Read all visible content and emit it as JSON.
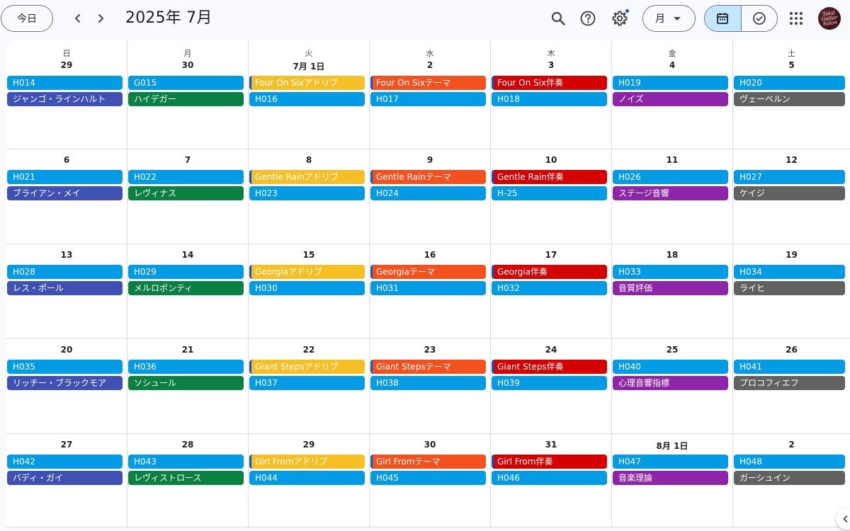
{
  "header": {
    "today_label": "今日",
    "title": "2025年 7月",
    "view_label": "月",
    "avatar_text": "Total Guitar Salon"
  },
  "weekdays": [
    "日",
    "月",
    "火",
    "水",
    "木",
    "金",
    "土"
  ],
  "colors": {
    "blue": "#039be5",
    "indigo": "#3f51b5",
    "green": "#0b8043",
    "yellow": "#f6bf26",
    "orange": "#f4511e",
    "red": "#d50000",
    "purple": "#8e24aa",
    "gray": "#616161",
    "accent": "#c2e7ff"
  },
  "weeks": [
    {
      "days": [
        {
          "label": "29",
          "events": [
            {
              "title": "H014",
              "color": "blue"
            },
            {
              "title": "ジャンゴ・ラインハルト",
              "color": "indigo"
            }
          ]
        },
        {
          "label": "30",
          "events": [
            {
              "title": "G015",
              "color": "blue"
            },
            {
              "title": "ハイデガー",
              "color": "green"
            }
          ]
        },
        {
          "label": "7月 1日",
          "events": [
            {
              "title": "Four On Sixアドリブ",
              "color": "yellow",
              "tag": true
            },
            {
              "title": "H016",
              "color": "blue"
            }
          ]
        },
        {
          "label": "2",
          "events": [
            {
              "title": "Four On Sixテーマ",
              "color": "orange",
              "tag": true
            },
            {
              "title": "H017",
              "color": "blue"
            }
          ]
        },
        {
          "label": "3",
          "events": [
            {
              "title": "Four On Six伴奏",
              "color": "red",
              "tag": true
            },
            {
              "title": "H018",
              "color": "blue"
            }
          ]
        },
        {
          "label": "4",
          "events": [
            {
              "title": "H019",
              "color": "blue"
            },
            {
              "title": "ノイズ",
              "color": "purple"
            }
          ]
        },
        {
          "label": "5",
          "events": [
            {
              "title": "H020",
              "color": "blue"
            },
            {
              "title": "ヴェーベルン",
              "color": "gray"
            }
          ]
        }
      ]
    },
    {
      "days": [
        {
          "label": "6",
          "events": [
            {
              "title": "H021",
              "color": "blue"
            },
            {
              "title": "ブライアン・メイ",
              "color": "indigo"
            }
          ]
        },
        {
          "label": "7",
          "events": [
            {
              "title": "H022",
              "color": "blue"
            },
            {
              "title": "レヴィナス",
              "color": "green"
            }
          ]
        },
        {
          "label": "8",
          "events": [
            {
              "title": "Gentle Rainアドリブ",
              "color": "yellow",
              "tag": true
            },
            {
              "title": "H023",
              "color": "blue"
            }
          ]
        },
        {
          "label": "9",
          "events": [
            {
              "title": "Gentle Rainテーマ",
              "color": "orange",
              "tag": true
            },
            {
              "title": "H024",
              "color": "blue"
            }
          ]
        },
        {
          "label": "10",
          "events": [
            {
              "title": "Gentle Rain伴奏",
              "color": "red",
              "tag": true
            },
            {
              "title": "H-25",
              "color": "blue"
            }
          ]
        },
        {
          "label": "11",
          "events": [
            {
              "title": "H026",
              "color": "blue"
            },
            {
              "title": "ステージ音響",
              "color": "purple"
            }
          ]
        },
        {
          "label": "12",
          "events": [
            {
              "title": "H027",
              "color": "blue"
            },
            {
              "title": "ケイジ",
              "color": "gray"
            }
          ]
        }
      ]
    },
    {
      "days": [
        {
          "label": "13",
          "events": [
            {
              "title": "H028",
              "color": "blue"
            },
            {
              "title": "レス・ポール",
              "color": "indigo"
            }
          ]
        },
        {
          "label": "14",
          "events": [
            {
              "title": "H029",
              "color": "blue"
            },
            {
              "title": "メルロポンティ",
              "color": "green"
            }
          ]
        },
        {
          "label": "15",
          "events": [
            {
              "title": "Georgiaアドリブ",
              "color": "yellow",
              "tag": true
            },
            {
              "title": "H030",
              "color": "blue"
            }
          ]
        },
        {
          "label": "16",
          "events": [
            {
              "title": "Georgiaテーマ",
              "color": "orange",
              "tag": true
            },
            {
              "title": "H031",
              "color": "blue"
            }
          ]
        },
        {
          "label": "17",
          "events": [
            {
              "title": "Georgia伴奏",
              "color": "red",
              "tag": true
            },
            {
              "title": "H032",
              "color": "blue"
            }
          ]
        },
        {
          "label": "18",
          "events": [
            {
              "title": "H033",
              "color": "blue"
            },
            {
              "title": "音質評価",
              "color": "purple"
            }
          ]
        },
        {
          "label": "19",
          "events": [
            {
              "title": "H034",
              "color": "blue"
            },
            {
              "title": "ライヒ",
              "color": "gray"
            }
          ]
        }
      ]
    },
    {
      "days": [
        {
          "label": "20",
          "events": [
            {
              "title": "H035",
              "color": "blue"
            },
            {
              "title": "リッチー・ブラックモア",
              "color": "indigo"
            }
          ]
        },
        {
          "label": "21",
          "events": [
            {
              "title": "H036",
              "color": "blue"
            },
            {
              "title": "ソシュール",
              "color": "green"
            }
          ]
        },
        {
          "label": "22",
          "events": [
            {
              "title": "Giant Stepsアドリブ",
              "color": "yellow",
              "tag": true
            },
            {
              "title": "H037",
              "color": "blue"
            }
          ]
        },
        {
          "label": "23",
          "events": [
            {
              "title": "Giant Stepsテーマ",
              "color": "orange",
              "tag": true
            },
            {
              "title": "H038",
              "color": "blue"
            }
          ]
        },
        {
          "label": "24",
          "events": [
            {
              "title": "Giant Steps伴奏",
              "color": "red",
              "tag": true
            },
            {
              "title": "H039",
              "color": "blue"
            }
          ]
        },
        {
          "label": "25",
          "events": [
            {
              "title": "H040",
              "color": "blue"
            },
            {
              "title": "心理音響指標",
              "color": "purple"
            }
          ]
        },
        {
          "label": "26",
          "events": [
            {
              "title": "H041",
              "color": "blue"
            },
            {
              "title": "プロコフィエフ",
              "color": "gray"
            }
          ]
        }
      ]
    },
    {
      "days": [
        {
          "label": "27",
          "events": [
            {
              "title": "H042",
              "color": "blue"
            },
            {
              "title": "バディ・ガイ",
              "color": "indigo"
            }
          ]
        },
        {
          "label": "28",
          "events": [
            {
              "title": "H043",
              "color": "blue"
            },
            {
              "title": "レヴィストロース",
              "color": "green"
            }
          ]
        },
        {
          "label": "29",
          "events": [
            {
              "title": "Girl Fromアドリブ",
              "color": "yellow",
              "tag": true
            },
            {
              "title": "H044",
              "color": "blue"
            }
          ]
        },
        {
          "label": "30",
          "events": [
            {
              "title": "Girl Fromテーマ",
              "color": "orange",
              "tag": true
            },
            {
              "title": "H045",
              "color": "blue"
            }
          ]
        },
        {
          "label": "31",
          "events": [
            {
              "title": "Girl From伴奏",
              "color": "red",
              "tag": true
            },
            {
              "title": "H046",
              "color": "blue"
            }
          ]
        },
        {
          "label": "8月 1日",
          "events": [
            {
              "title": "H047",
              "color": "blue"
            },
            {
              "title": "音楽理論",
              "color": "purple"
            }
          ]
        },
        {
          "label": "2",
          "events": [
            {
              "title": "H048",
              "color": "blue"
            },
            {
              "title": "ガーシュイン",
              "color": "gray"
            }
          ]
        }
      ]
    }
  ]
}
